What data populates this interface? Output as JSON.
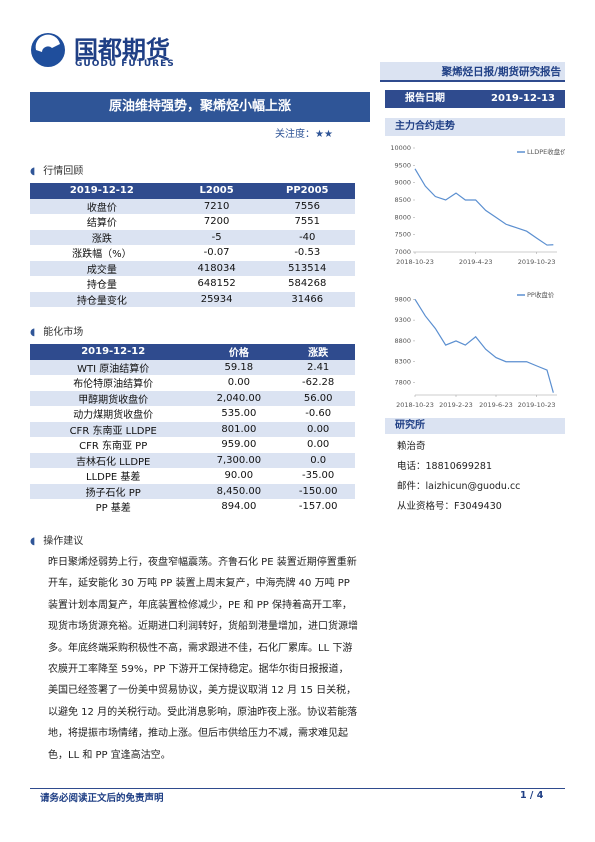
{
  "header": {
    "logo_cn": "国都期货",
    "logo_en": "GUODU FUTURES",
    "report_type": "聚烯烃日报/期货研究报告",
    "date_label": "报告日期",
    "date": "2019-12-13"
  },
  "title": "原油维持强势，聚烯烃小幅上涨",
  "attention_label": "关注度：",
  "attention_stars": "★★",
  "section1": {
    "heading": "行情回顾",
    "table": {
      "header": [
        "2019-12-12",
        "L2005",
        "PP2005"
      ],
      "rows": [
        [
          "收盘价",
          "7210",
          "7556"
        ],
        [
          "结算价",
          "7200",
          "7551"
        ],
        [
          "涨跌",
          "-5",
          "-40"
        ],
        [
          "涨跌幅（%）",
          "-0.07",
          "-0.53"
        ],
        [
          "成交量",
          "418034",
          "513514"
        ],
        [
          "持仓量",
          "648152",
          "584268"
        ],
        [
          "持仓量变化",
          "25934",
          "31466"
        ]
      ]
    }
  },
  "section2": {
    "heading": "能化市场",
    "table": {
      "header": [
        "2019-12-12",
        "价格",
        "涨跌"
      ],
      "rows": [
        [
          "WTI 原油结算价",
          "59.18",
          "2.41"
        ],
        [
          "布伦特原油结算价",
          "0.00",
          "-62.28"
        ],
        [
          "甲醇期货收盘价",
          "2,040.00",
          "56.00"
        ],
        [
          "动力煤期货收盘价",
          "535.00",
          "-0.60"
        ],
        [
          "CFR 东南亚 LLDPE",
          "801.00",
          "0.00"
        ],
        [
          "CFR 东南亚 PP",
          "959.00",
          "0.00"
        ],
        [
          "吉林石化 LLDPE",
          "7,300.00",
          "0.0"
        ],
        [
          "LLDPE 基差",
          "90.00",
          "-35.00"
        ],
        [
          "扬子石化 PP",
          "8,450.00",
          "-150.00"
        ],
        [
          "PP 基差",
          "894.00",
          "-157.00"
        ]
      ]
    }
  },
  "section3": {
    "heading": "操作建议",
    "paragraph": "昨日聚烯烃弱势上行，夜盘窄幅震荡。齐鲁石化 PE 装置近期停置重新开车，延安能化 30 万吨 PP 装置上周末复产，中海壳牌 40 万吨 PP 装置计划本周复产，年底装置检修减少，PE 和 PP 保持着高开工率，现货市场货源充裕。近期进口利润转好，货船到港量增加，进口货源增多。年底终端采购积极性不高，需求跟进不佳，石化厂累库。LL 下游农膜开工率降至 59%，PP 下游开工保持稳定。据华尔街日报报道，美国已经签署了一份美中贸易协议，美方提议取消 12 月 15 日关税，以避免 12 月的关税行动。受此消息影响，原油昨夜上涨。协议若能落地，将提振市场情绪，推动上涨。但后市供给压力不减，需求难见起色，LL 和 PP 宜逢高沽空。"
  },
  "chart_heading": "主力合约走势",
  "chart_data": [
    {
      "type": "line",
      "x": [
        "2018-10-23",
        "2018-11-23",
        "2018-12-23",
        "2019-01-23",
        "2019-02-23",
        "2019-03-23",
        "2019-04-23",
        "2019-05-23",
        "2019-06-23",
        "2019-07-23",
        "2019-08-23",
        "2019-09-23",
        "2019-10-23",
        "2019-11-23",
        "2019-12-12"
      ],
      "series": [
        {
          "name": "LLDPE收盘价",
          "color": "#5b8fd0",
          "values": [
            9400,
            8900,
            8600,
            8500,
            8700,
            8500,
            8500,
            8200,
            8000,
            7800,
            7700,
            7600,
            7400,
            7200,
            7210
          ]
        }
      ],
      "xlim": [
        "2018-10-23",
        "2019-12-23"
      ],
      "xticks": [
        "2018-10-23",
        "2019-4-23",
        "2019-10-23"
      ],
      "ylim": [
        7000,
        10000
      ],
      "yticks": [
        7000,
        7500,
        8000,
        8500,
        9000,
        9500,
        10000
      ]
    },
    {
      "type": "line",
      "x": [
        "2018-10-23",
        "2018-11-23",
        "2018-12-23",
        "2019-01-23",
        "2019-02-23",
        "2019-03-23",
        "2019-04-23",
        "2019-05-23",
        "2019-06-23",
        "2019-07-23",
        "2019-08-23",
        "2019-09-23",
        "2019-10-23",
        "2019-11-23",
        "2019-12-12"
      ],
      "series": [
        {
          "name": "PP收盘价",
          "color": "#5b8fd0",
          "values": [
            9800,
            9400,
            9100,
            8700,
            8800,
            8700,
            8900,
            8600,
            8400,
            8300,
            8300,
            8300,
            8200,
            8100,
            7556
          ]
        }
      ],
      "xlim": [
        "2018-10-23",
        "2019-12-23"
      ],
      "xticks": [
        "2018-10-23",
        "2019-2-23",
        "2019-6-23",
        "2019-10-23"
      ],
      "ylim": [
        7500,
        10000
      ],
      "yticks": [
        7800,
        8300,
        8800,
        9300,
        9800
      ]
    }
  ],
  "research": {
    "heading": "研究所",
    "name": "赖治奇",
    "phone_label": "电话：",
    "phone": "18810699281",
    "email_label": "邮件：",
    "email": "laizhicun@guodu.cc",
    "license_label": "从业资格号：",
    "license": "F3049430"
  },
  "footer": {
    "disclaimer": "请务必阅读正文后的免责声明",
    "page": "1 / 4"
  }
}
